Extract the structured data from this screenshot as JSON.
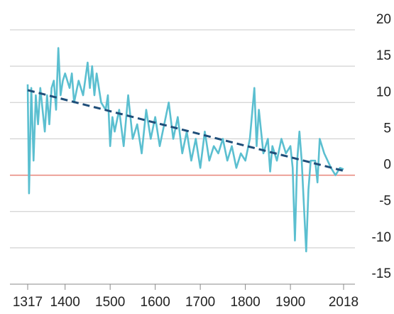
{
  "chart_data": {
    "type": "line",
    "x": [
      1317,
      1320,
      1325,
      1330,
      1335,
      1340,
      1345,
      1350,
      1355,
      1360,
      1365,
      1370,
      1375,
      1380,
      1385,
      1390,
      1395,
      1400,
      1410,
      1415,
      1420,
      1430,
      1440,
      1450,
      1455,
      1460,
      1465,
      1470,
      1480,
      1490,
      1495,
      1500,
      1505,
      1510,
      1520,
      1530,
      1540,
      1550,
      1560,
      1570,
      1580,
      1590,
      1600,
      1610,
      1620,
      1630,
      1640,
      1650,
      1660,
      1670,
      1680,
      1690,
      1700,
      1710,
      1720,
      1730,
      1740,
      1750,
      1760,
      1770,
      1780,
      1790,
      1800,
      1810,
      1820,
      1825,
      1830,
      1840,
      1850,
      1855,
      1860,
      1870,
      1880,
      1890,
      1900,
      1905,
      1910,
      1915,
      1920,
      1925,
      1935,
      1940,
      1945,
      1955,
      1960,
      1965,
      1975,
      1990,
      2000,
      2010,
      2018
    ],
    "values": [
      12.5,
      -2.5,
      12,
      2,
      11,
      7,
      12,
      9,
      6,
      11,
      7,
      12,
      13,
      9,
      17.5,
      11,
      13,
      14,
      12,
      14,
      10,
      13,
      11,
      15.5,
      12,
      15,
      11,
      14,
      10,
      9,
      11,
      4,
      8,
      6,
      9,
      4,
      11,
      5,
      7,
      3,
      9,
      5,
      8,
      4,
      7,
      10,
      5,
      8,
      3,
      6,
      2,
      5,
      1,
      6,
      2,
      4,
      3,
      5,
      2,
      4,
      1,
      3,
      2,
      5,
      12,
      4,
      9,
      3,
      5,
      0.5,
      4,
      2,
      5,
      3,
      4,
      1,
      -9,
      2,
      6,
      2,
      -10.5,
      -2,
      2,
      2,
      -1,
      5,
      3,
      1,
      0,
      1,
      0.8
    ],
    "color": "#5bbfd0",
    "trend": {
      "x": [
        1317,
        2018
      ],
      "values": [
        11.7,
        0.6
      ],
      "color": "#1f4e79",
      "dashed": true
    },
    "reference_line": {
      "value": 0,
      "color": "#e8847a"
    },
    "xlim": [
      1317,
      2018
    ],
    "ylim": [
      -15,
      20
    ],
    "xticks": [
      1317,
      1400,
      1500,
      1600,
      1700,
      1800,
      1900,
      2018
    ],
    "yticks": [
      -15,
      -10,
      -5,
      0,
      5,
      10,
      15,
      20
    ],
    "grid": true
  }
}
